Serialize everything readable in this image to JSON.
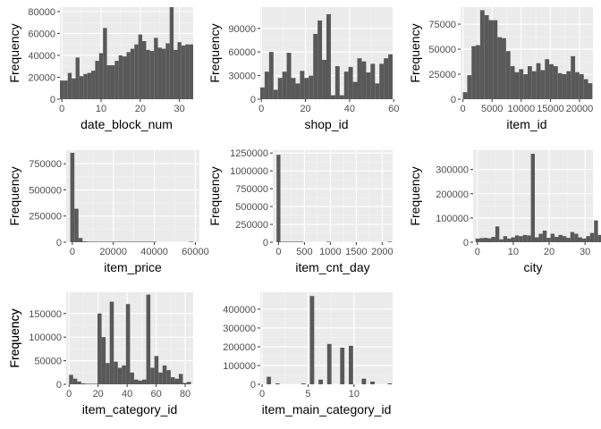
{
  "colors": {
    "panel_bg": "#ebebeb",
    "grid_major": "#ffffff",
    "grid_minor": "#f5f5f5",
    "bar": "#595959",
    "tick_text": "#4d4d4d",
    "axis_text": "#000000"
  },
  "chart_data": [
    {
      "type": "bar",
      "xlabel": "date_block_num",
      "ylabel": "Frequency",
      "xlim": [
        -0.5,
        33.5
      ],
      "ylim": [
        0,
        84000
      ],
      "xticks": [
        0,
        10,
        20,
        30
      ],
      "xtick_labels": [
        "0",
        "10",
        "20",
        "30"
      ],
      "yticks": [
        0,
        20000,
        40000,
        60000,
        80000
      ],
      "ytick_labels": [
        "0",
        "20000",
        "40000",
        "60000",
        "80000"
      ],
      "bins": {
        "start": -0.5,
        "width": 1
      },
      "values": [
        17000,
        17000,
        24000,
        19000,
        38000,
        21000,
        23000,
        24000,
        26000,
        35000,
        42000,
        65000,
        31000,
        31000,
        35000,
        40000,
        39000,
        43000,
        46000,
        50000,
        59000,
        53000,
        45000,
        44000,
        56000,
        47000,
        46000,
        51000,
        84000,
        45000,
        52000,
        49000,
        50000,
        50000
      ]
    },
    {
      "type": "bar",
      "xlabel": "shop_id",
      "ylabel": "Frequency",
      "xlim": [
        -0.5,
        59.5
      ],
      "ylim": [
        0,
        117000
      ],
      "xticks": [
        0,
        20,
        40,
        60
      ],
      "xtick_labels": [
        "0",
        "20",
        "40",
        "60"
      ],
      "yticks": [
        0,
        30000,
        60000,
        90000
      ],
      "ytick_labels": [
        "0",
        "30000",
        "60000",
        "90000"
      ],
      "bins": {
        "start": -0.5,
        "width": 2
      },
      "values": [
        15000,
        35000,
        60000,
        12000,
        27000,
        35000,
        59000,
        27000,
        20000,
        36000,
        27000,
        30000,
        83000,
        100000,
        50000,
        108000,
        5000,
        42000,
        5000,
        35000,
        41000,
        22000,
        52000,
        48000,
        34000,
        45000,
        20000,
        45000,
        52000,
        57000
      ]
    },
    {
      "type": "bar",
      "xlabel": "item_id",
      "ylabel": "Frequency",
      "xlim": [
        -400,
        22300
      ],
      "ylim": [
        0,
        92000
      ],
      "xticks": [
        0,
        5000,
        10000,
        15000,
        20000
      ],
      "xtick_labels": [
        "0",
        "5000",
        "10000",
        "15000",
        "20000"
      ],
      "yticks": [
        0,
        25000,
        50000,
        75000
      ],
      "ytick_labels": [
        "0",
        "25000",
        "50000",
        "75000"
      ],
      "bins": {
        "start": 0,
        "width": 740
      },
      "values": [
        7000,
        24000,
        53000,
        54000,
        89000,
        84000,
        79000,
        79000,
        62000,
        61000,
        48000,
        33000,
        27000,
        30000,
        25000,
        33000,
        28000,
        36000,
        29000,
        40000,
        35000,
        33000,
        26000,
        25000,
        28000,
        43000,
        27000,
        25000,
        20000,
        16000
      ]
    },
    {
      "type": "bar",
      "xlabel": "item_price",
      "ylabel": "Frequency",
      "xlim": [
        -3000,
        62000
      ],
      "ylim": [
        0,
        880000
      ],
      "xticks": [
        0,
        20000,
        40000,
        60000
      ],
      "xtick_labels": [
        "0",
        "20000",
        "40000",
        "60000"
      ],
      "yticks": [
        0,
        250000,
        500000,
        750000
      ],
      "ytick_labels": [
        "0",
        "250000",
        "500000",
        "750000"
      ],
      "bins": {
        "start": -1000,
        "width": 2000
      },
      "values": [
        855000,
        320000,
        40000,
        8000,
        3000,
        1500,
        800,
        400,
        200,
        100,
        60,
        30,
        20,
        10,
        5,
        5,
        2,
        2,
        1,
        1,
        1,
        0,
        0,
        0,
        0,
        0,
        0,
        0,
        0,
        1
      ]
    },
    {
      "type": "bar",
      "xlabel": "item_cnt_day",
      "ylabel": "Frequency",
      "xlim": [
        -110,
        2200
      ],
      "ylim": [
        0,
        1290000
      ],
      "xticks": [
        0,
        500,
        1000,
        1500,
        2000
      ],
      "xtick_labels": [
        "0",
        "500",
        "1000",
        "1500",
        "2000"
      ],
      "yticks": [
        0,
        250000,
        500000,
        750000,
        1000000,
        1250000
      ],
      "ytick_labels": [
        "0",
        "250000",
        "500000",
        "750000",
        "1000000",
        "1250000"
      ],
      "bins": {
        "start": -37,
        "width": 74
      },
      "values": [
        1225000,
        200,
        20,
        5,
        2,
        1,
        1,
        0,
        0,
        0,
        0,
        0,
        0,
        1,
        0,
        0,
        0,
        0,
        0,
        0,
        0,
        0,
        0,
        0,
        0,
        0,
        0,
        0,
        0,
        1
      ]
    },
    {
      "type": "bar",
      "xlabel": "city",
      "ylabel": "Frequency",
      "xlim": [
        -1.2,
        32.2
      ],
      "ylim": [
        0,
        380000
      ],
      "xticks": [
        0,
        10,
        20,
        30
      ],
      "xtick_labels": [
        "0",
        "10",
        "20",
        "30"
      ],
      "yticks": [
        0,
        100000,
        200000,
        300000
      ],
      "ytick_labels": [
        "0",
        "100000",
        "200000",
        "300000"
      ],
      "bins": {
        "start": -0.5,
        "width": 1.1
      },
      "values": [
        15000,
        17000,
        18000,
        16000,
        22000,
        65000,
        12000,
        25000,
        15000,
        20000,
        28000,
        25000,
        30000,
        28000,
        365000,
        20000,
        35000,
        48000,
        18000,
        35000,
        22000,
        30000,
        25000,
        18000,
        42000,
        35000,
        20000,
        15000,
        25000,
        38000,
        90000,
        30000
      ]
    },
    {
      "type": "bar",
      "xlabel": "item_category_id",
      "ylabel": "Frequency",
      "xlim": [
        -2,
        85.5
      ],
      "ylim": [
        0,
        195000
      ],
      "xticks": [
        0,
        20,
        40,
        60,
        80
      ],
      "xtick_labels": [
        "0",
        "20",
        "40",
        "60",
        "80"
      ],
      "yticks": [
        0,
        50000,
        100000,
        150000
      ],
      "ytick_labels": [
        "0",
        "50000",
        "100000",
        "150000"
      ],
      "bins": {
        "start": 0,
        "width": 2.8
      },
      "values": [
        20000,
        12000,
        6000,
        2000,
        1000,
        1000,
        1000,
        150000,
        100000,
        45000,
        175000,
        48000,
        35000,
        40000,
        170000,
        25000,
        10000,
        8000,
        10000,
        190000,
        35000,
        60000,
        25000,
        40000,
        30000,
        15000,
        12000,
        22000,
        3000,
        5000
      ]
    },
    {
      "type": "bar",
      "xlabel": "item_main_category_id",
      "ylabel": "Frequency",
      "xlim": [
        -0.2,
        14.2
      ],
      "ylim": [
        0,
        490000
      ],
      "xticks": [
        0,
        5,
        10
      ],
      "xtick_labels": [
        "0",
        "5",
        "10"
      ],
      "yticks": [
        0,
        100000,
        200000,
        300000,
        400000
      ],
      "ytick_labels": [
        "0",
        "100000",
        "200000",
        "300000",
        "400000"
      ],
      "bins": {
        "start": 0.5,
        "width": 0.47
      },
      "values": [
        40000,
        0,
        5000,
        0,
        0,
        0,
        0,
        0,
        5000,
        0,
        470000,
        0,
        25000,
        0,
        215000,
        0,
        0,
        195000,
        0,
        205000,
        0,
        0,
        30000,
        0,
        15000,
        0,
        0,
        0,
        5000,
        0
      ]
    }
  ]
}
